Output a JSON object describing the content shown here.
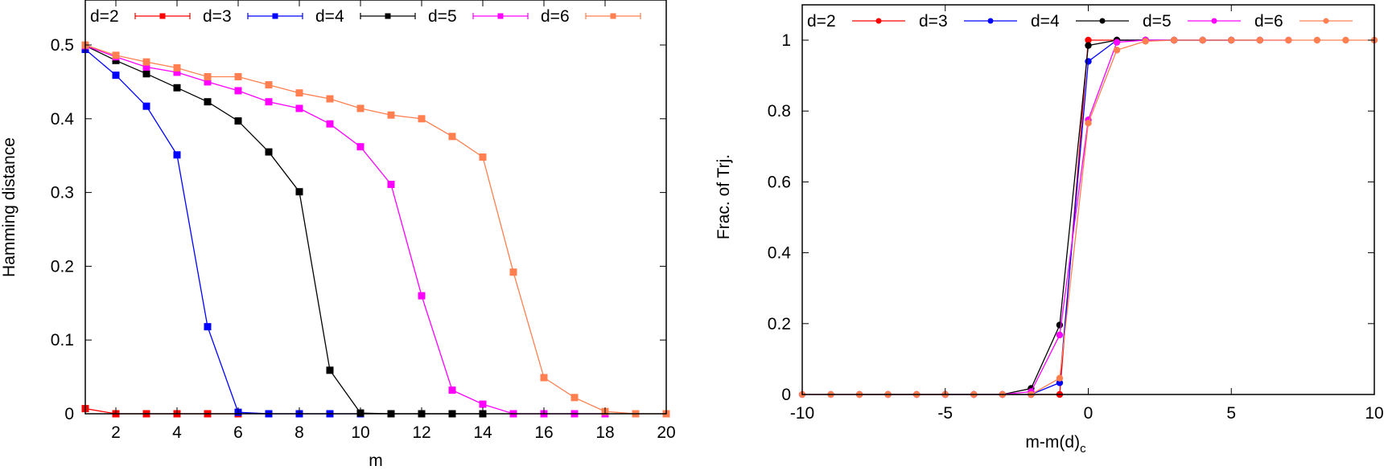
{
  "chart_data": [
    {
      "type": "line",
      "title": "",
      "xlabel": "m",
      "ylabel": "Hamming distance",
      "xlim": [
        1,
        20
      ],
      "ylim": [
        0,
        0.55
      ],
      "xticks": [
        2,
        4,
        6,
        8,
        10,
        12,
        14,
        16,
        18,
        20
      ],
      "xtick_labels": [
        "2",
        "4",
        "6",
        "8",
        "10",
        "12",
        "14",
        "16",
        "18",
        "20"
      ],
      "yticks": [
        0,
        0.1,
        0.2,
        0.3,
        0.4,
        0.5
      ],
      "ytick_labels": [
        "0",
        "0.1",
        "0.2",
        "0.3",
        "0.4",
        "0.5"
      ],
      "grid": false,
      "legend_position": "top, horizontal inside plot",
      "marker": "square with error bars",
      "series": [
        {
          "name": "d=2",
          "color": "#ff0000",
          "x": [
            1,
            2,
            3,
            4,
            5,
            6
          ],
          "y": [
            0.007,
            0,
            0,
            0,
            0,
            0
          ]
        },
        {
          "name": "d=3",
          "color": "#0000ff",
          "x": [
            1,
            2,
            3,
            4,
            5,
            6,
            7,
            8,
            9,
            10
          ],
          "y": [
            0.494,
            0.459,
            0.417,
            0.351,
            0.118,
            0.002,
            0,
            0,
            0,
            0
          ]
        },
        {
          "name": "d=4",
          "color": "#000000",
          "x": [
            1,
            2,
            3,
            4,
            5,
            6,
            7,
            8,
            9,
            10,
            11,
            12,
            13,
            14
          ],
          "y": [
            0.499,
            0.479,
            0.461,
            0.442,
            0.423,
            0.397,
            0.355,
            0.301,
            0.059,
            0.001,
            0,
            0,
            0,
            0
          ]
        },
        {
          "name": "d=5",
          "color": "#ff00ff",
          "x": [
            1,
            2,
            3,
            4,
            5,
            6,
            7,
            8,
            9,
            10,
            11,
            12,
            13,
            14,
            15,
            16,
            17,
            18
          ],
          "y": [
            0.499,
            0.484,
            0.47,
            0.463,
            0.45,
            0.438,
            0.423,
            0.414,
            0.393,
            0.362,
            0.311,
            0.16,
            0.032,
            0.013,
            0,
            0,
            0,
            0
          ]
        },
        {
          "name": "d=6",
          "color": "#ff7f50",
          "x": [
            1,
            2,
            3,
            4,
            5,
            6,
            7,
            8,
            9,
            10,
            11,
            12,
            13,
            14,
            15,
            16,
            17,
            18,
            19,
            20
          ],
          "y": [
            0.5,
            0.486,
            0.477,
            0.469,
            0.457,
            0.457,
            0.446,
            0.435,
            0.427,
            0.414,
            0.405,
            0.4,
            0.376,
            0.348,
            0.192,
            0.049,
            0.022,
            0.003,
            0,
            0
          ]
        }
      ]
    },
    {
      "type": "line",
      "title": "",
      "xlabel": "m-m(d)",
      "xlabel_subscript": "c",
      "ylabel": "Frac. of Trj.",
      "xlim": [
        -10,
        10
      ],
      "ylim": [
        0,
        1.1
      ],
      "xticks": [
        -10,
        -5,
        0,
        5,
        10
      ],
      "xtick_labels": [
        "-10",
        "-5",
        "0",
        "5",
        "10"
      ],
      "yticks": [
        0,
        0.2,
        0.4,
        0.6,
        0.8,
        1
      ],
      "ytick_labels": [
        "0",
        "0.2",
        "0.4",
        "0.6",
        "0.8",
        "1"
      ],
      "grid": false,
      "legend_position": "top, horizontal inside plot",
      "marker": "circle",
      "series": [
        {
          "name": "d=2",
          "color": "#ff0000",
          "x": [
            -2,
            -1,
            0,
            1,
            2
          ],
          "y": [
            0,
            0,
            1,
            1,
            1
          ]
        },
        {
          "name": "d=3",
          "color": "#0000ff",
          "x": [
            -5,
            -4,
            -3,
            -2,
            -1,
            0,
            1,
            2,
            3,
            4,
            5
          ],
          "y": [
            0,
            0,
            0,
            0,
            0.033,
            0.94,
            1,
            1,
            1,
            1,
            1
          ]
        },
        {
          "name": "d=4",
          "color": "#000000",
          "x": [
            -8,
            -7,
            -6,
            -5,
            -4,
            -3,
            -2,
            -1,
            0,
            1,
            2,
            3,
            4,
            5,
            6
          ],
          "y": [
            0,
            0,
            0,
            0,
            0,
            0,
            0.017,
            0.196,
            0.985,
            1,
            1,
            1,
            1,
            1,
            1
          ]
        },
        {
          "name": "d=5",
          "color": "#ff00ff",
          "x": [
            -10,
            -9,
            -8,
            -7,
            -6,
            -5,
            -4,
            -3,
            -2,
            -1,
            0,
            1,
            2,
            3,
            4,
            5,
            6,
            7
          ],
          "y": [
            0,
            0,
            0,
            0,
            0,
            0,
            0,
            0,
            0.008,
            0.168,
            0.775,
            0.994,
            1,
            1,
            1,
            1,
            1,
            1
          ]
        },
        {
          "name": "d=6",
          "color": "#ff7f50",
          "x": [
            -10,
            -9,
            -8,
            -7,
            -6,
            -5,
            -4,
            -3,
            -2,
            -1,
            0,
            1,
            2,
            3,
            4,
            5,
            6,
            7,
            8,
            9,
            10
          ],
          "y": [
            0,
            0,
            0,
            0,
            0,
            0,
            0,
            0,
            0,
            0.046,
            0.766,
            0.972,
            0.997,
            1,
            1,
            1,
            1,
            1,
            1,
            1,
            1
          ]
        }
      ]
    }
  ],
  "left": {
    "xlabel": "m",
    "ylabel": "Hamming distance",
    "legend": [
      "d=2",
      "d=3",
      "d=4",
      "d=5",
      "d=6"
    ]
  },
  "right": {
    "xlabel": "m-m(d)",
    "xlabel_sub": "c",
    "ylabel": "Frac. of Trj.",
    "legend": [
      "d=2",
      "d=3",
      "d=4",
      "d=5",
      "d=6"
    ]
  }
}
